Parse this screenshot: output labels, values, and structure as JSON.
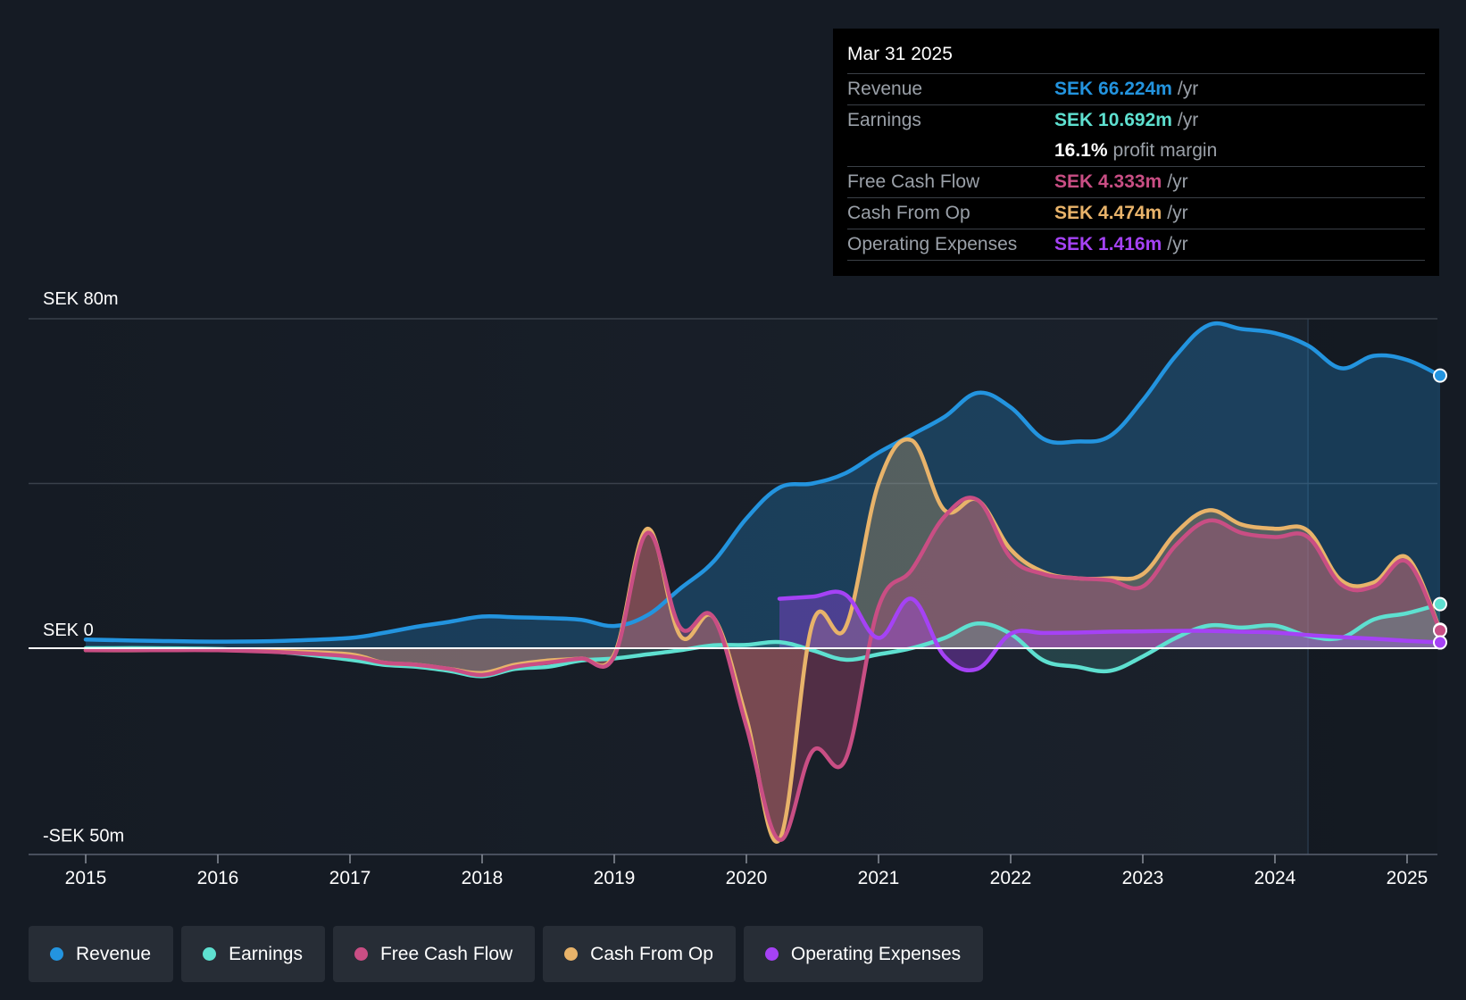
{
  "colors": {
    "background": "#151b24",
    "revenue": "#2394df",
    "earnings": "#5ee0d0",
    "fcf": "#c94e84",
    "cfo": "#e8b36a",
    "opex": "#a542f5",
    "grid": "#3a414b"
  },
  "tooltip": {
    "date": "Mar 31 2025",
    "rows": [
      {
        "label": "Revenue",
        "value": "SEK 66.224m",
        "unit": "/yr"
      },
      {
        "label": "Earnings",
        "value": "SEK 10.692m",
        "unit": "/yr"
      },
      {
        "label": "",
        "value": "16.1%",
        "unit": "profit margin"
      },
      {
        "label": "Free Cash Flow",
        "value": "SEK 4.333m",
        "unit": "/yr"
      },
      {
        "label": "Cash From Op",
        "value": "SEK 4.474m",
        "unit": "/yr"
      },
      {
        "label": "Operating Expenses",
        "value": "SEK 1.416m",
        "unit": "/yr"
      }
    ]
  },
  "legend": [
    {
      "label": "Revenue",
      "icon": "revenue-dot-icon"
    },
    {
      "label": "Earnings",
      "icon": "earnings-dot-icon"
    },
    {
      "label": "Free Cash Flow",
      "icon": "fcf-dot-icon"
    },
    {
      "label": "Cash From Op",
      "icon": "cfo-dot-icon"
    },
    {
      "label": "Operating Expenses",
      "icon": "opex-dot-icon"
    }
  ],
  "chart_data": {
    "type": "area",
    "ylim": [
      -50,
      80
    ],
    "y_ticks": [
      {
        "value": 80,
        "label": "SEK 80m"
      },
      {
        "value": 0,
        "label": "SEK 0"
      },
      {
        "value": -50,
        "label": "-SEK 50m"
      }
    ],
    "x_ticks": [
      "2015",
      "2016",
      "2017",
      "2018",
      "2019",
      "2020",
      "2021",
      "2022",
      "2023",
      "2024",
      "2025"
    ],
    "xlim": [
      2014.57,
      2025.25
    ],
    "forecast_start": 2024.25,
    "series": [
      {
        "name": "Revenue",
        "key": "revenue",
        "x": [
          2015.0,
          2015.5,
          2016.0,
          2016.5,
          2017.0,
          2017.25,
          2017.5,
          2017.75,
          2018.0,
          2018.25,
          2018.5,
          2018.75,
          2019.0,
          2019.25,
          2019.5,
          2019.75,
          2020.0,
          2020.25,
          2020.5,
          2020.75,
          2021.0,
          2021.25,
          2021.5,
          2021.75,
          2022.0,
          2022.25,
          2022.5,
          2022.75,
          2023.0,
          2023.25,
          2023.5,
          2023.75,
          2024.0,
          2024.25,
          2024.5,
          2024.75,
          2025.0,
          2025.25
        ],
        "values": [
          2.1,
          1.8,
          1.6,
          1.8,
          2.5,
          3.7,
          5.2,
          6.4,
          7.7,
          7.5,
          7.3,
          6.9,
          5.4,
          8.0,
          14.5,
          21.0,
          31.5,
          39.0,
          40.0,
          42.5,
          47.5,
          51.8,
          56.2,
          62.0,
          58.5,
          50.8,
          50.2,
          51.5,
          60.2,
          71.0,
          78.5,
          77.5,
          76.5,
          73.5,
          68.0,
          71.0,
          70.0,
          66.2
        ]
      },
      {
        "name": "Earnings",
        "key": "earnings",
        "x": [
          2015.0,
          2015.5,
          2016.0,
          2016.5,
          2017.0,
          2017.25,
          2017.5,
          2017.75,
          2018.0,
          2018.25,
          2018.5,
          2018.75,
          2019.0,
          2019.25,
          2019.5,
          2019.75,
          2020.0,
          2020.25,
          2020.5,
          2020.75,
          2021.0,
          2021.25,
          2021.5,
          2021.75,
          2022.0,
          2022.25,
          2022.5,
          2022.75,
          2023.0,
          2023.25,
          2023.5,
          2023.75,
          2024.0,
          2024.25,
          2024.5,
          2024.75,
          2025.0,
          2025.25
        ],
        "values": [
          0,
          0,
          -0.2,
          -1.0,
          -2.8,
          -4.0,
          -4.5,
          -5.5,
          -6.8,
          -5.0,
          -4.5,
          -3.0,
          -2.5,
          -1.5,
          -0.5,
          0.7,
          0.8,
          1.5,
          -0.5,
          -2.8,
          -1.5,
          0,
          2.5,
          6.0,
          3.5,
          -3.0,
          -4.5,
          -5.5,
          -2.0,
          2.5,
          5.5,
          5.0,
          5.5,
          3.0,
          2.5,
          7.0,
          8.5,
          10.7
        ]
      },
      {
        "name": "Free Cash Flow",
        "key": "fcf",
        "x": [
          2015.0,
          2015.5,
          2016.0,
          2016.5,
          2017.0,
          2017.25,
          2017.5,
          2017.75,
          2018.0,
          2018.25,
          2018.5,
          2018.75,
          2019.0,
          2019.25,
          2019.5,
          2019.75,
          2020.0,
          2020.25,
          2020.5,
          2020.75,
          2021.0,
          2021.25,
          2021.5,
          2021.75,
          2022.0,
          2022.25,
          2022.5,
          2022.75,
          2023.0,
          2023.25,
          2023.5,
          2023.75,
          2024.0,
          2024.25,
          2024.5,
          2024.75,
          2025.0,
          2025.25
        ],
        "values": [
          -0.5,
          -0.5,
          -0.5,
          -1.0,
          -2.0,
          -3.5,
          -4.0,
          -5.0,
          -6.5,
          -4.5,
          -3.5,
          -2.5,
          -2.0,
          28.0,
          5.0,
          7.5,
          -19.0,
          -46.5,
          -25.0,
          -27.0,
          10.0,
          19.0,
          32.0,
          36.0,
          22.0,
          18.0,
          17.0,
          16.5,
          15.0,
          25.0,
          31.0,
          28.0,
          27.0,
          27.0,
          15.5,
          15.0,
          21.0,
          4.3
        ]
      },
      {
        "name": "Cash From Op",
        "key": "cfo",
        "x": [
          2015.0,
          2015.5,
          2016.0,
          2016.5,
          2017.0,
          2017.25,
          2017.5,
          2017.75,
          2018.0,
          2018.25,
          2018.5,
          2018.75,
          2019.0,
          2019.25,
          2019.5,
          2019.75,
          2020.0,
          2020.25,
          2020.5,
          2020.75,
          2021.0,
          2021.25,
          2021.5,
          2021.75,
          2022.0,
          2022.25,
          2022.5,
          2022.75,
          2023.0,
          2023.25,
          2023.5,
          2023.75,
          2024.0,
          2024.25,
          2024.5,
          2024.75,
          2025.0,
          2025.25
        ],
        "values": [
          -0.5,
          -0.5,
          -0.3,
          -0.7,
          -1.5,
          -3.5,
          -4.0,
          -5.0,
          -6.0,
          -4.0,
          -3.0,
          -2.5,
          -1.5,
          29.0,
          3.0,
          7.5,
          -17.0,
          -46.5,
          6.0,
          5.0,
          40.0,
          50.5,
          33.5,
          36.0,
          24.0,
          18.5,
          17.0,
          17.0,
          18.0,
          28.0,
          33.5,
          30.0,
          29.0,
          28.5,
          16.5,
          16.0,
          22.0,
          4.5
        ]
      },
      {
        "name": "Operating Expenses",
        "key": "opex",
        "x": [
          2020.25,
          2020.5,
          2020.75,
          2021.0,
          2021.25,
          2021.5,
          2021.75,
          2022.0,
          2022.25,
          2022.5,
          2022.75,
          2023.0,
          2023.25,
          2023.5,
          2023.75,
          2024.0,
          2024.25,
          2024.5,
          2024.75,
          2025.0,
          2025.25
        ],
        "values": [
          12.0,
          12.5,
          13.0,
          2.5,
          12.0,
          -2.0,
          -5.0,
          3.5,
          3.7,
          3.8,
          4.0,
          4.1,
          4.2,
          4.2,
          4.0,
          3.8,
          3.2,
          2.7,
          2.3,
          1.8,
          1.4
        ]
      }
    ]
  }
}
